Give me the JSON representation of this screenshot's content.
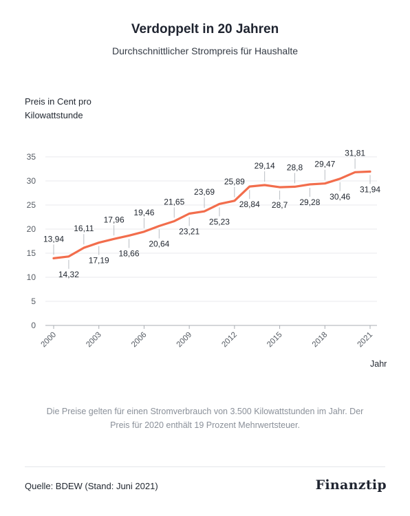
{
  "header": {
    "title": "Verdoppelt in 20 Jahren",
    "subtitle": "Durchschnittlicher Strompreis für Haushalte"
  },
  "footer": {
    "note": "Die Preise gelten für einen Stromverbrauch von 3.500 Kilowattstunden im Jahr. Der Preis für 2020 enthält 19 Prozent Mehrwertsteuer.",
    "source": "Quelle: BDEW (Stand: Juni 2021)",
    "logo": "Finanztip"
  },
  "colors": {
    "line": "#f26d4c",
    "grid": "#e8e9ec",
    "axis": "#a9adb3",
    "tick_text": "#555b63",
    "label_text": "#222831"
  },
  "chart_data": {
    "type": "line",
    "title": "Verdoppelt in 20 Jahren",
    "subtitle": "Durchschnittlicher Strompreis für Haushalte",
    "xlabel": "Jahr",
    "ylabel": "Preis in Cent pro Kilowattstunde",
    "x": [
      2000,
      2001,
      2002,
      2003,
      2004,
      2005,
      2006,
      2007,
      2008,
      2009,
      2010,
      2011,
      2012,
      2013,
      2014,
      2015,
      2016,
      2017,
      2018,
      2019,
      2020,
      2021
    ],
    "x_tick_labels": [
      "2000",
      "2003",
      "2006",
      "2009",
      "2012",
      "2015",
      "2018",
      "2021"
    ],
    "y_ticks": [
      0,
      5,
      10,
      15,
      20,
      25,
      30,
      35
    ],
    "ylim": [
      0,
      35
    ],
    "grid": true,
    "series": [
      {
        "values": [
          13.94,
          14.32,
          16.11,
          17.19,
          17.96,
          18.66,
          19.46,
          20.64,
          21.65,
          23.21,
          23.69,
          25.23,
          25.89,
          28.84,
          29.14,
          28.7,
          28.8,
          29.28,
          29.47,
          30.46,
          31.81,
          31.94
        ],
        "labels": [
          "13,94",
          "14,32",
          "16,11",
          "17,19",
          "17,96",
          "18,66",
          "19,46",
          "20,64",
          "21,65",
          "23,21",
          "23,69",
          "25,23",
          "25,89",
          "28,84",
          "29,14",
          "28,7",
          "28,8",
          "29,28",
          "29,47",
          "30,46",
          "31,81",
          "31,94"
        ],
        "label_pos": [
          "above",
          "below",
          "above",
          "below",
          "above",
          "below",
          "above",
          "below",
          "above",
          "below",
          "above",
          "below",
          "above",
          "below",
          "above",
          "below",
          "above",
          "below",
          "above",
          "below",
          "above",
          "below"
        ]
      }
    ]
  }
}
